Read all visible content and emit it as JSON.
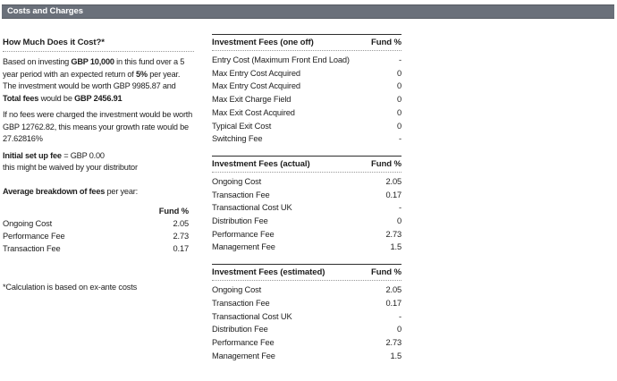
{
  "header": {
    "title": "Costs and Charges"
  },
  "left": {
    "heading": "How Much Does it Cost?*",
    "p1": {
      "t1": "Based on investing ",
      "b1": "GBP 10,000",
      "t2": " in this fund over a 5 year period with an expected return of ",
      "b2": "5%",
      "t3": " per year."
    },
    "p2": {
      "t1": "The investment would be worth GBP 9985.87 and ",
      "b1": "Total fees",
      "t2": " would be ",
      "b2": "GBP 2456.91"
    },
    "p3": "If no fees were charged the investment would be worth GBP 12762.82, this means your growth rate would be 27.62816%",
    "p4": {
      "b1": "Initial set up fee",
      "t1": " = GBP 0.00"
    },
    "p5": "this might be waived by your distributor",
    "p6": {
      "b1": "Average breakdown of fees",
      "t1": " per year:"
    },
    "table": {
      "col_header": "Fund %",
      "rows": [
        {
          "label": "Ongoing Cost",
          "value": "2.05"
        },
        {
          "label": "Performance Fee",
          "value": "2.73"
        },
        {
          "label": "Transaction Fee",
          "value": "0.17"
        }
      ]
    },
    "footnote": "*Calculation is based on ex-ante costs"
  },
  "right": {
    "sections": [
      {
        "title": "Investment Fees (one off)",
        "col_header": "Fund %",
        "rows": [
          {
            "label": "Entry Cost (Maximum Front End Load)",
            "value": "-"
          },
          {
            "label": "Max Entry Cost Acquired",
            "value": "0"
          },
          {
            "label": "Max Entry Cost Acquired",
            "value": "0"
          },
          {
            "label": "Max Exit Charge Field",
            "value": "0"
          },
          {
            "label": "Max Exit Cost Acquired",
            "value": "0"
          },
          {
            "label": "Typical Exit Cost",
            "value": "0"
          },
          {
            "label": "Switching Fee",
            "value": "-"
          }
        ]
      },
      {
        "title": "Investment Fees (actual)",
        "col_header": "Fund %",
        "rows": [
          {
            "label": "Ongoing Cost",
            "value": "2.05"
          },
          {
            "label": "Transaction Fee",
            "value": "0.17"
          },
          {
            "label": "Transactional Cost UK",
            "value": "-"
          },
          {
            "label": "Distribution Fee",
            "value": "0"
          },
          {
            "label": "Performance Fee",
            "value": "2.73"
          },
          {
            "label": "Management Fee",
            "value": "1.5"
          }
        ]
      },
      {
        "title": "Investment Fees (estimated)",
        "col_header": "Fund %",
        "rows": [
          {
            "label": "Ongoing Cost",
            "value": "2.05"
          },
          {
            "label": "Transaction Fee",
            "value": "0.17"
          },
          {
            "label": "Transactional Cost UK",
            "value": "-"
          },
          {
            "label": "Distribution Fee",
            "value": "0"
          },
          {
            "label": "Performance Fee",
            "value": "2.73"
          },
          {
            "label": "Management Fee",
            "value": "1.5"
          }
        ]
      }
    ]
  },
  "colors": {
    "header_bar": "#6a707a",
    "text": "#1e1e1e",
    "solid_rule": "#2e2e2e",
    "dotted_rule": "#9a9a9a"
  }
}
